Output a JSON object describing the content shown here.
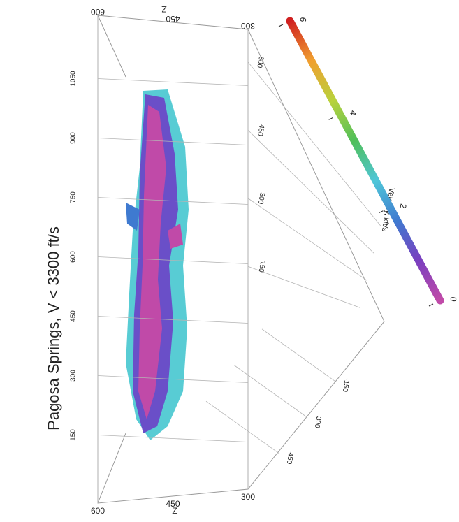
{
  "chart_data": {
    "type": "volume",
    "title": "Pagosa Springs, V < 3300 ft/s",
    "zlabel": "Z",
    "zticks": [
      300,
      450,
      600
    ],
    "zlim": [
      300,
      600
    ],
    "yticks": [
      150,
      300,
      450,
      600,
      750,
      900,
      1050
    ],
    "ylim": [
      75,
      1125
    ],
    "xticks": [
      150,
      300,
      450,
      600
    ],
    "xlim": [
      75,
      675
    ],
    "x2ticks": [
      -450,
      -300,
      -150
    ],
    "x2lim": [
      -525,
      -75
    ],
    "colorbar_label": "Velocity, kft/s",
    "colorbar_ticks": [
      0,
      2,
      4,
      6
    ],
    "colorbar_lim": [
      0,
      6
    ],
    "colormap": [
      "#c04aa8",
      "#7a3fbf",
      "#3f7ad0",
      "#4fc6d8",
      "#4fbf5a",
      "#b8d23c",
      "#f0a030",
      "#d02020"
    ]
  }
}
